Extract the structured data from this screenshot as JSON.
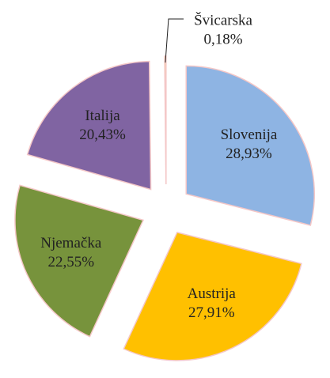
{
  "chart_data": {
    "type": "pie",
    "categories": [
      "Slovenija",
      "Austrija",
      "Njemačka",
      "Italija",
      "Švicarska"
    ],
    "values": [
      28.93,
      27.91,
      22.55,
      20.43,
      0.18
    ],
    "value_labels": [
      "28,93%",
      "27,91%",
      "22,55%",
      "20,43%",
      "0,18%"
    ],
    "colors": [
      "#8eb4e3",
      "#ffc000",
      "#77933c",
      "#8064a2",
      "#ffff66"
    ],
    "exploded": true
  }
}
